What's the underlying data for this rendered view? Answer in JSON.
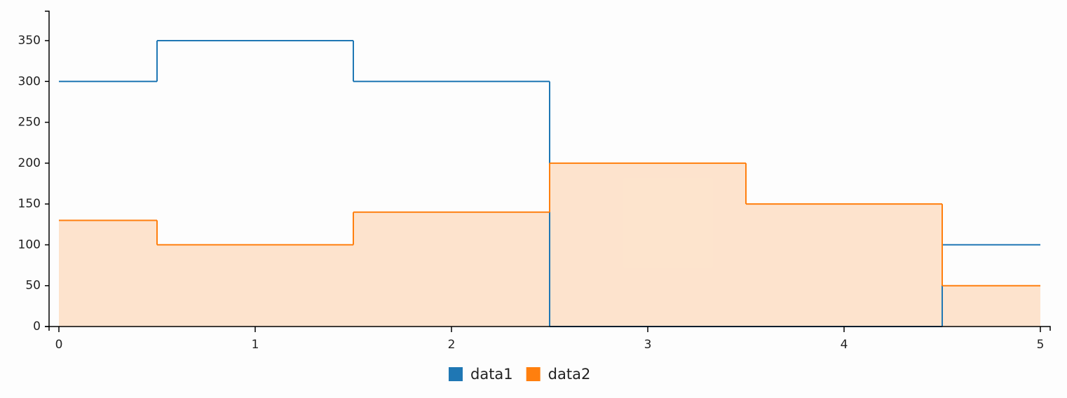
{
  "chart_data": {
    "type": "step",
    "x": [
      0,
      1,
      2,
      3,
      4,
      5
    ],
    "series": [
      {
        "name": "data1",
        "color": "#1f77b4",
        "values": [
          300,
          350,
          300,
          0,
          0,
          100
        ],
        "area": false
      },
      {
        "name": "data2",
        "color": "#ff7f0e",
        "values": [
          130,
          100,
          140,
          200,
          150,
          50
        ],
        "area": true
      }
    ],
    "xlim": [
      -0.05,
      5.05
    ],
    "xticks": [
      0,
      1,
      2,
      3,
      4,
      5
    ],
    "ylim": [
      0,
      386
    ],
    "yticks": [
      0,
      50,
      100,
      150,
      200,
      250,
      300,
      350
    ],
    "legend": "bottom"
  }
}
